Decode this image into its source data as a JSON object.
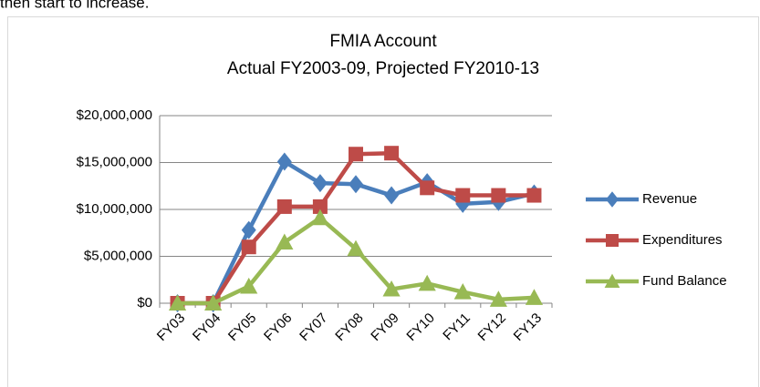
{
  "text_above": "then start to increase.",
  "chart_data": {
    "type": "line",
    "title": "FMIA Account",
    "subtitle": "Actual FY2003-09, Projected FY2010-13",
    "categories": [
      "FY03",
      "FY04",
      "FY05",
      "FY06",
      "FY07",
      "FY08",
      "FY09",
      "FY10",
      "FY11",
      "FY12",
      "FY13"
    ],
    "series": [
      {
        "name": "Revenue",
        "color": "#4a7ebb",
        "marker": "diamond",
        "values": [
          0,
          0,
          7800000,
          15100000,
          12800000,
          12700000,
          11500000,
          12900000,
          10600000,
          10800000,
          11700000
        ]
      },
      {
        "name": "Expenditures",
        "color": "#be4b48",
        "marker": "square",
        "values": [
          0,
          0,
          6000000,
          10300000,
          10300000,
          15900000,
          16000000,
          12300000,
          11500000,
          11500000,
          11500000
        ]
      },
      {
        "name": "Fund Balance",
        "color": "#98b954",
        "marker": "triangle",
        "values": [
          0,
          0,
          1800000,
          6500000,
          9100000,
          5800000,
          1500000,
          2100000,
          1200000,
          400000,
          600000
        ]
      }
    ],
    "ylim": [
      0,
      20000000
    ],
    "yticks": [
      {
        "value": 0,
        "label": "$0"
      },
      {
        "value": 5000000,
        "label": "$5,000,000"
      },
      {
        "value": 10000000,
        "label": "$10,000,000"
      },
      {
        "value": 15000000,
        "label": "$15,000,000"
      },
      {
        "value": 20000000,
        "label": "$20,000,000"
      }
    ],
    "grid": true,
    "legend": "right"
  }
}
